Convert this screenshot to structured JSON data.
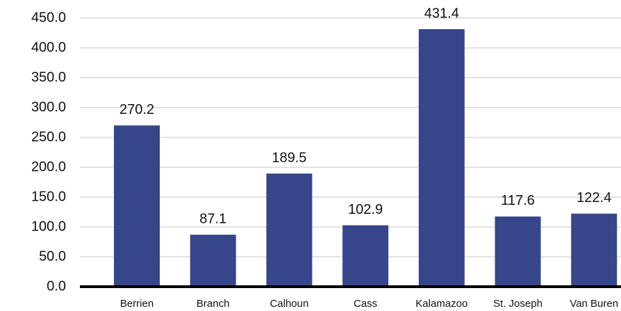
{
  "chart_data": {
    "type": "bar",
    "categories": [
      "Berrien",
      "Branch",
      "Calhoun",
      "Cass",
      "Kalamazoo",
      "St. Joseph",
      "Van Buren"
    ],
    "values": [
      270.2,
      87.1,
      189.5,
      102.9,
      431.4,
      117.6,
      122.4
    ],
    "color": "#36468a",
    "ylim": [
      0,
      450
    ],
    "yticks": [
      {
        "value": 0,
        "label": "0.0"
      },
      {
        "value": 50,
        "label": "50.0"
      },
      {
        "value": 100,
        "label": "100.0"
      },
      {
        "value": 150,
        "label": "150.0"
      },
      {
        "value": 200,
        "label": "200.0"
      },
      {
        "value": 250,
        "label": "250.0"
      },
      {
        "value": 300,
        "label": "300.0"
      },
      {
        "value": 350,
        "label": "350.0"
      },
      {
        "value": 400,
        "label": "400.0"
      },
      {
        "value": 450,
        "label": "450.0"
      }
    ],
    "grid": true
  }
}
